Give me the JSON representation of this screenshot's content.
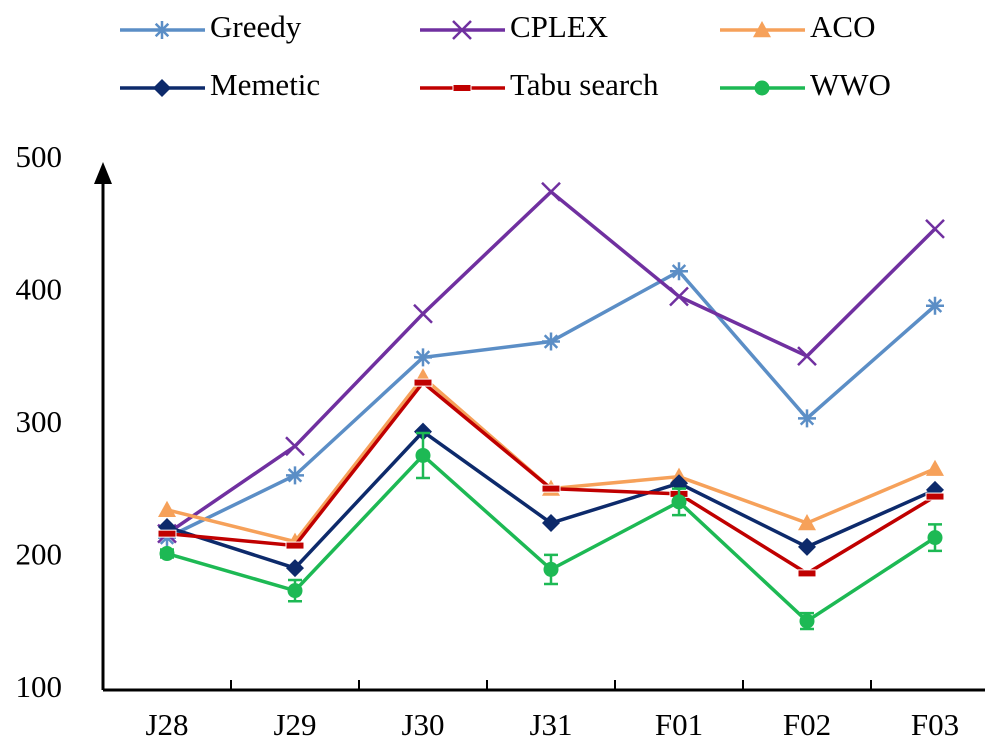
{
  "chart_data": {
    "type": "line",
    "categories": [
      "J28",
      "J29",
      "J30",
      "J31",
      "F01",
      "F02",
      "F03"
    ],
    "series": [
      {
        "name": "Greedy",
        "color": "#5b8ec6",
        "marker": "star",
        "values": [
          215,
          262,
          351,
          363,
          416,
          305,
          390
        ]
      },
      {
        "name": "CPLEX",
        "color": "#7030a0",
        "marker": "x",
        "values": [
          218,
          284,
          384,
          476,
          397,
          352,
          448
        ]
      },
      {
        "name": "ACO",
        "color": "#f6a15a",
        "marker": "triangle",
        "values": [
          236,
          212,
          336,
          252,
          261,
          226,
          267
        ]
      },
      {
        "name": "Memetic",
        "color": "#0d2a6b",
        "marker": "diamond",
        "values": [
          223,
          192,
          295,
          226,
          256,
          208,
          251
        ]
      },
      {
        "name": "Tabu search",
        "color": "#c00000",
        "marker": "dash",
        "values": [
          218,
          209,
          332,
          252,
          248,
          188,
          246
        ]
      },
      {
        "name": "WWO",
        "color": "#1db954",
        "marker": "circle",
        "values": [
          203,
          175,
          277,
          191,
          242,
          152,
          215
        ],
        "errors": [
          3,
          8,
          17,
          11,
          10,
          6,
          10
        ]
      }
    ],
    "ylim": [
      100,
      500
    ],
    "yticks": [
      100,
      200,
      300,
      400,
      500
    ],
    "grid": false
  }
}
